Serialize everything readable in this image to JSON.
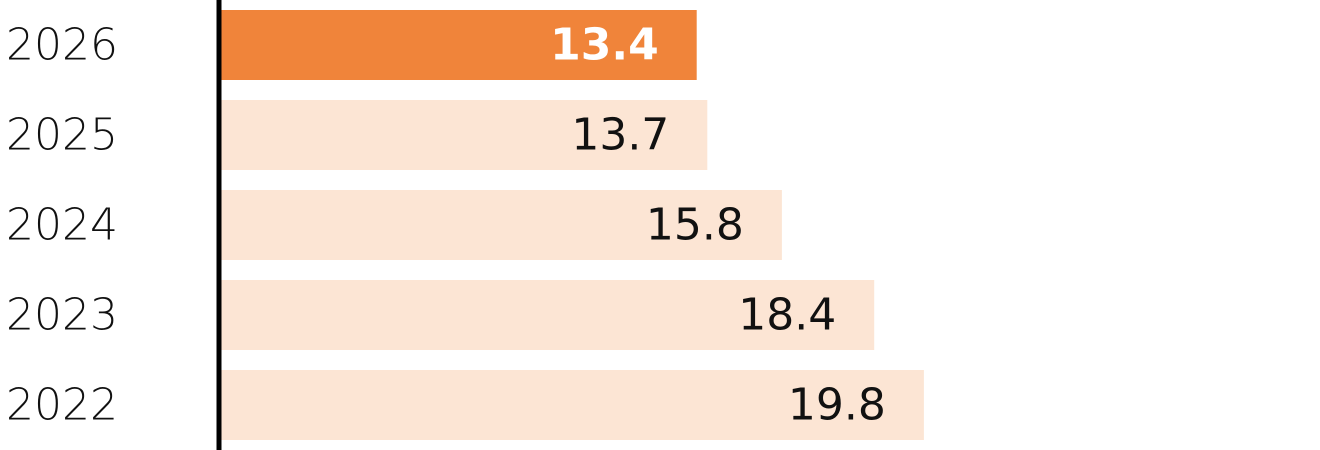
{
  "chart_data": {
    "type": "bar",
    "orientation": "horizontal",
    "categories": [
      "2026",
      "2025",
      "2024",
      "2023",
      "2022"
    ],
    "values": [
      13.4,
      13.7,
      15.8,
      18.4,
      19.8
    ],
    "value_labels": [
      "13.4",
      "13.7",
      "15.8",
      "18.4",
      "19.8"
    ],
    "highlight_index": 0,
    "xlim": [
      0,
      35
    ],
    "grid": false,
    "legend": "none"
  },
  "colors": {
    "highlight_bar": "#f0843a",
    "bar": "#fce5d4",
    "axis": "#000000",
    "text": "#111111",
    "highlight_text": "#ffffff"
  }
}
